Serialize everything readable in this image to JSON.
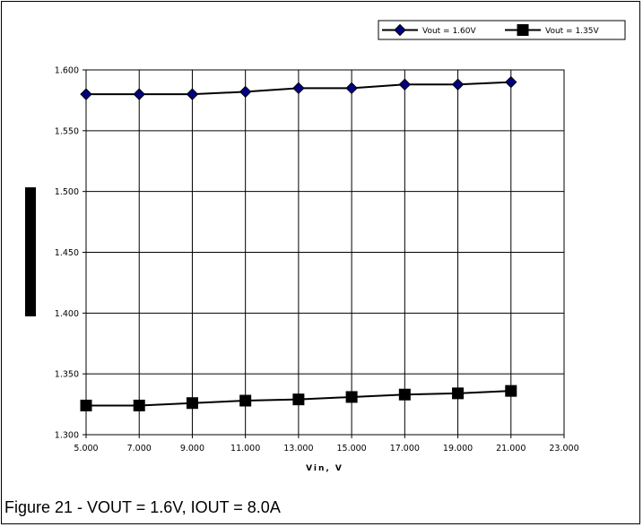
{
  "caption": "Figure 21 - VOUT = 1.6V, IOUT = 8.0A",
  "chart_data": {
    "type": "line",
    "title": "",
    "xlabel": "Vin, V",
    "ylabel": "",
    "xlim": [
      5,
      23
    ],
    "ylim": [
      1.3,
      1.6
    ],
    "x_ticks": [
      "5.000",
      "7.000",
      "9.000",
      "11.000",
      "13.000",
      "15.000",
      "17.000",
      "19.000",
      "21.000",
      "23.000"
    ],
    "y_ticks": [
      "1.300",
      "1.350",
      "1.400",
      "1.450",
      "1.500",
      "1.550",
      "1.600"
    ],
    "grid": true,
    "legend_position": "top-right",
    "x": [
      5,
      7,
      9,
      11,
      13,
      15,
      17,
      19,
      21
    ],
    "series": [
      {
        "name": "Vout = 1.60V",
        "marker": "diamond",
        "marker_color": "#000080",
        "values": [
          1.58,
          1.58,
          1.58,
          1.582,
          1.585,
          1.585,
          1.588,
          1.588,
          1.59
        ]
      },
      {
        "name": "Vout = 1.35V",
        "marker": "square",
        "marker_color": "#000000",
        "values": [
          1.324,
          1.324,
          1.326,
          1.328,
          1.329,
          1.331,
          1.333,
          1.334,
          1.336
        ]
      }
    ]
  }
}
